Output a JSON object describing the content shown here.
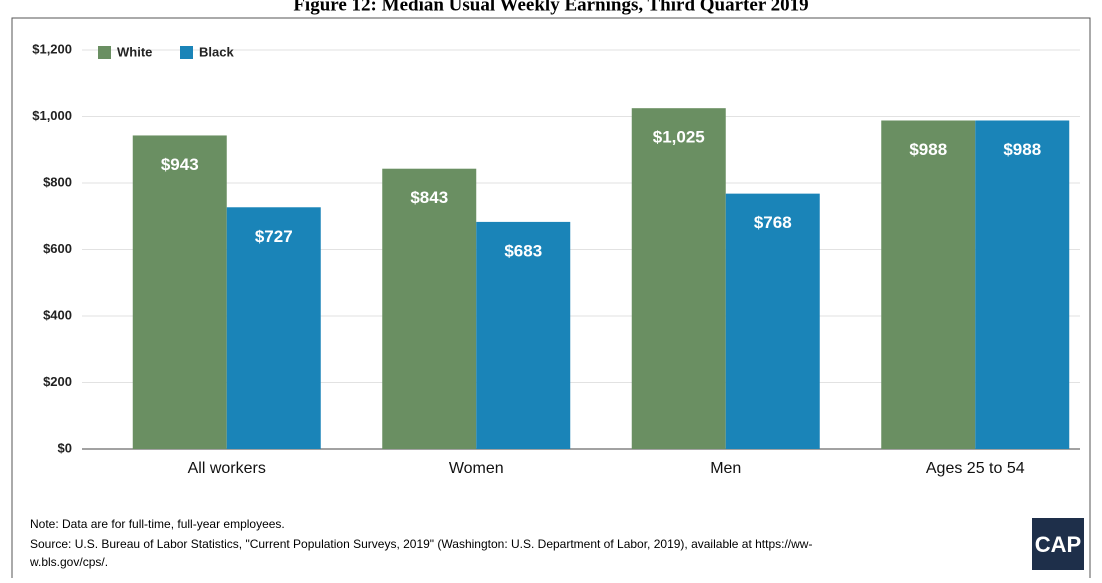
{
  "chart_data": {
    "type": "bar",
    "title": "Figure 12: Median Usual Weekly Earnings, Third Quarter 2019",
    "categories": [
      "All workers",
      "Women",
      "Men",
      "Ages 25 to 54"
    ],
    "series": [
      {
        "name": "White",
        "color": "#6a8f62",
        "values": [
          943,
          843,
          1025,
          988
        ],
        "value_labels": [
          "$943",
          "$843",
          "$1,025",
          "$988"
        ]
      },
      {
        "name": "Black",
        "color": "#1a84b8",
        "values": [
          727,
          683,
          768,
          988
        ],
        "value_labels": [
          "$727",
          "$683",
          "$768",
          "$988"
        ]
      }
    ],
    "ylim": [
      0,
      1200
    ],
    "yticks": [
      {
        "value": 0,
        "label": "$0"
      },
      {
        "value": 200,
        "label": "$200"
      },
      {
        "value": 400,
        "label": "$400"
      },
      {
        "value": 600,
        "label": "$600"
      },
      {
        "value": 800,
        "label": "$800"
      },
      {
        "value": 1000,
        "label": "$1,000"
      },
      {
        "value": 1200,
        "label": "$1,200"
      }
    ],
    "grid": true,
    "legend": "top-left",
    "notes": [
      "Note: Data are for full-time, full-year employees.",
      "Source: U.S. Bureau of Labor Statistics, \"Current Population Surveys, 2019\" (Washington: U.S. Department of Labor, 2019), available at https://ww-",
      "w.bls.gov/cps/."
    ],
    "logo": "CAP"
  }
}
